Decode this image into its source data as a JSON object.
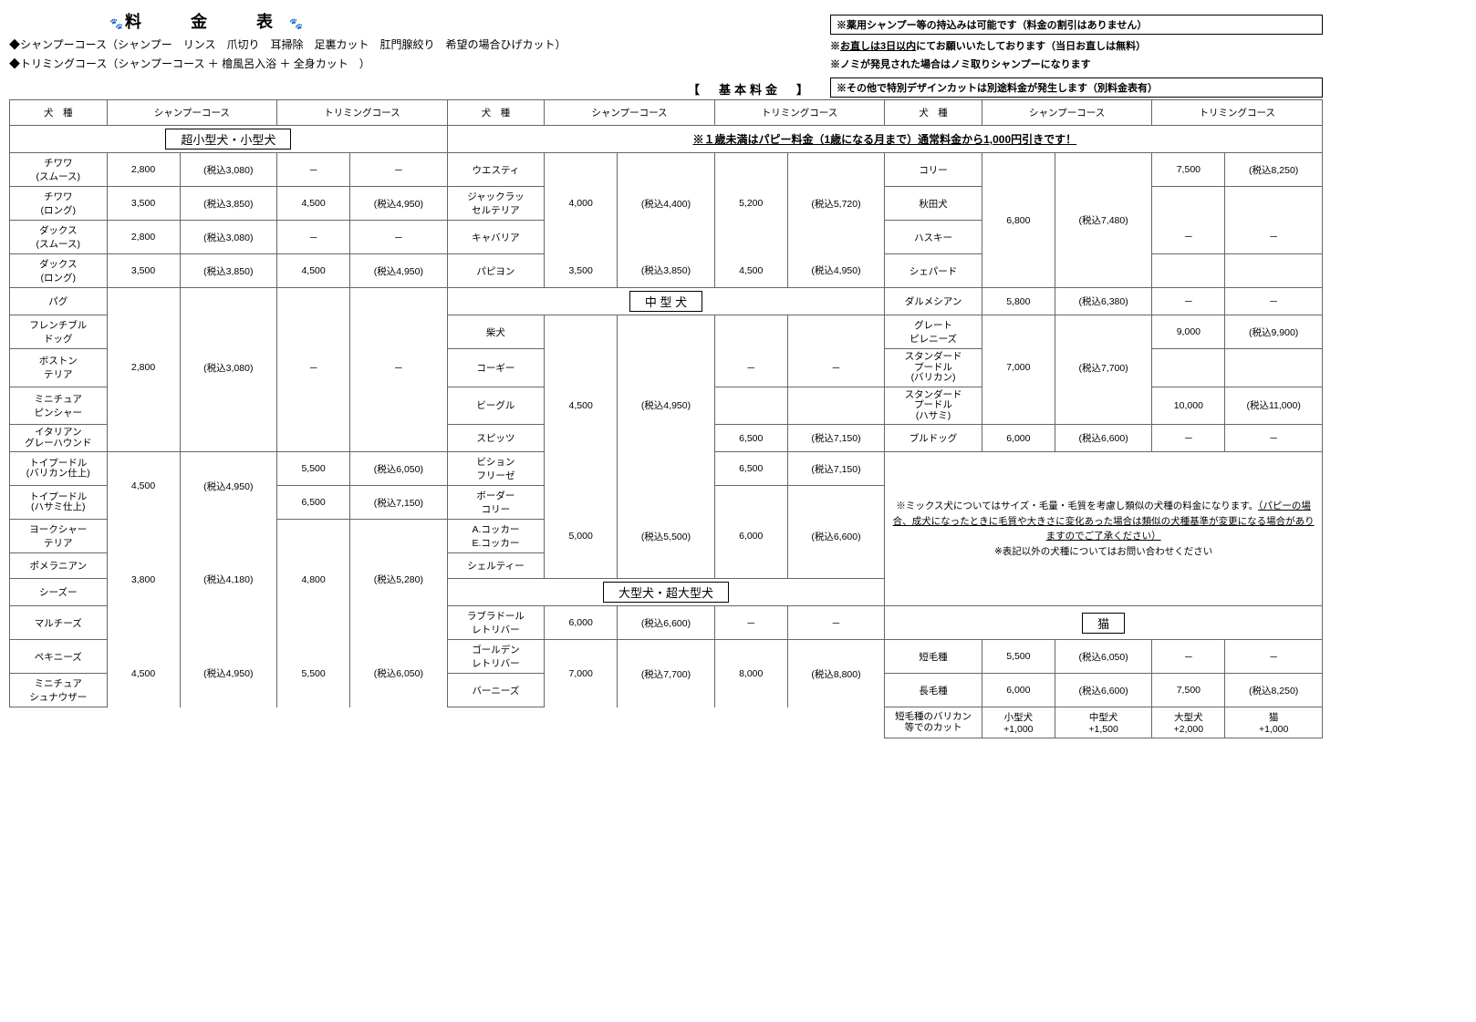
{
  "title": "料　金　表",
  "subtitle1": "シャンプーコース（シャンプー　リンス　爪切り　耳掃除　足裏カット　肛門腺絞り　希望の場合ひげカット）",
  "subtitle2": "トリミングコース（シャンプーコース ＋ 檜風呂入浴 ＋ 全身カット　）",
  "notes": {
    "n1": "※薬用シャンプー等の持込みは可能です（料金の割引はありません）",
    "n2a": "※",
    "n2b": "お直しは3日以内",
    "n2c": "にてお願いいたしております（当日お直しは無料）",
    "n3": "※ノミが発見された場合はノミ取りシャンプーになります",
    "n4": "※その他で特別デザインカットは別途料金が発生します（別料金表有）"
  },
  "section_basic": "【　基本料金　】",
  "hdr_breed": "犬　種",
  "hdr_shampoo": "シャンプーコース",
  "hdr_trim": "トリミングコース",
  "cat_small": "超小型犬・小型犬",
  "cat_medium": "中 型 犬",
  "cat_large": "大型犬・超大型犬",
  "cat_cat": "猫",
  "puppy_notice": "※１歳未満はパピー料金（1歳になる月まで）通常料金から1,000円引きです！",
  "dash": "－",
  "breeds": {
    "chihuahua_s": "チワワ\n(スムース)",
    "chihuahua_l": "チワワ\n(ロング)",
    "dachs_s": "ダックス\n(スムース)",
    "dachs_l": "ダックス\n(ロング)",
    "pug": "パグ",
    "frenchbull": "フレンチブル\nドッグ",
    "boston": "ボストン\nテリア",
    "minpin": "ミニチュア\nピンシャー",
    "itagrey": "イタリアン\nグレーハウンド",
    "toypoodle_c": "トイプードル\n(バリカン仕上)",
    "toypoodle_s": "トイプードル\n(ハサミ仕上)",
    "yorkshire": "ヨークシャー\nテリア",
    "pomeranian": "ポメラニアン",
    "shihtzu": "シーズー",
    "maltese": "マルチーズ",
    "pekingese": "ペキニーズ",
    "schnauzer": "ミニチュア\nシュナウザー",
    "westie": "ウエスティ",
    "jackrussell": "ジャックラッ\nセルテリア",
    "cavalier": "キャバリア",
    "papillon": "パピヨン",
    "shiba": "柴犬",
    "corgi": "コーギー",
    "beagle": "ビーグル",
    "spitz": "スピッツ",
    "bichon": "ビション\nフリーゼ",
    "border": "ボーダー\nコリー",
    "cocker": "A.コッカー\nE.コッカー",
    "sheltie": "シェルティー",
    "labrador": "ラブラドール\nレトリバー",
    "golden": "ゴールデン\nレトリバー",
    "bernese": "バーニーズ",
    "collie": "コリー",
    "akita": "秋田犬",
    "husky": "ハスキー",
    "shepherd": "シェパード",
    "dalmatian": "ダルメシアン",
    "pyrenees": "グレート\nピレニーズ",
    "stdpoodle_c": "スタンダード\nプードル\n(バリカン)",
    "stdpoodle_s": "スタンダード\nプードル\n(ハサミ)",
    "bulldog": "ブルドッグ",
    "cat_short": "短毛種",
    "cat_long": "長毛種",
    "cat_cut": "短毛種のバリカン\n等でのカット"
  },
  "prices": {
    "p2800": "2,800",
    "t3080": "(税込3,080)",
    "p3500": "3,500",
    "t3850": "(税込3,850)",
    "p4500": "4,500",
    "t4950": "(税込4,950)",
    "p4000": "4,000",
    "t4400": "(税込4,400)",
    "p5200": "5,200",
    "t5720": "(税込5,720)",
    "p6800": "6,800",
    "t7480": "(税込7,480)",
    "p7500": "7,500",
    "t8250": "(税込8,250)",
    "p5800": "5,800",
    "t6380": "(税込6,380)",
    "p9000": "9,000",
    "t9900": "(税込9,900)",
    "p7000": "7,000",
    "t7700": "(税込7,700)",
    "p10000": "10,000",
    "t11000": "(税込11,000)",
    "p6000": "6,000",
    "t6600": "(税込6,600)",
    "p6500": "6,500",
    "t7150": "(税込7,150)",
    "p5500": "5,500",
    "t6050": "(税込6,050)",
    "p5000": "5,000",
    "t5500": "(税込5,500)",
    "p3800": "3,800",
    "t4180": "(税込4,180)",
    "p4800": "4,800",
    "t5280": "(税込5,280)",
    "p8000": "8,000",
    "t8800": "(税込8,800)"
  },
  "mix_notice1": "※ミックス犬についてはサイズ・毛量・毛質を考慮し類似の犬種の料金になります。",
  "mix_notice2": "（パピーの場合、成犬になったときに毛質や大きさに変化あった場合は類似の犬種基準が変更になる場合がありますのでご了承ください）",
  "mix_notice3": "※表記以外の犬種についてはお問い合わせください",
  "cut_small": "小型犬\n+1,000",
  "cut_med": "中型犬\n+1,500",
  "cut_large": "大型犬\n+2,000",
  "cut_cat": "猫\n+1,000"
}
